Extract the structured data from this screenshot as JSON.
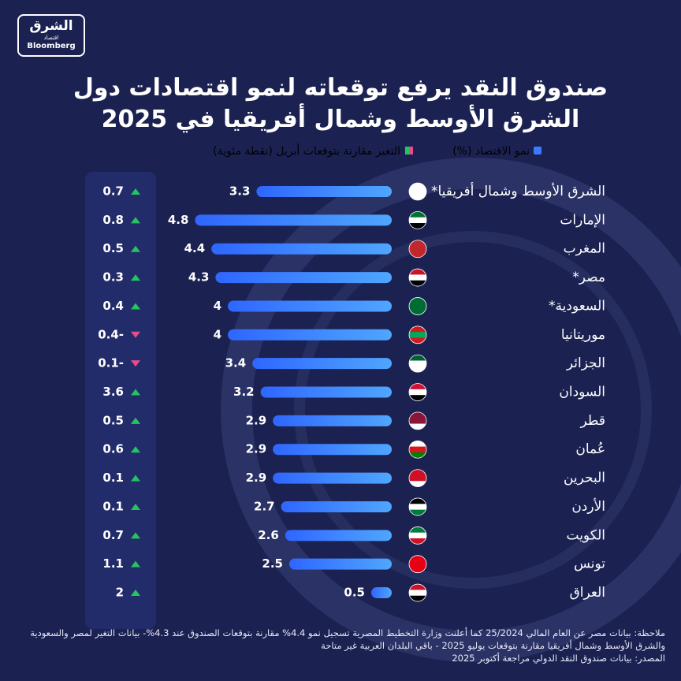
{
  "logo": {
    "name": "الشرق",
    "sub": "اقتصاد",
    "brand": "Bloomberg"
  },
  "chart_data": {
    "type": "bar",
    "orientation": "horizontal",
    "title": "صندوق النقد يرفع توقعاته لنمو اقتصادات دول الشرق الأوسط وشمال أفريقيا في 2025",
    "categories": [
      "الشرق الأوسط وشمال أفريقيا*",
      "الإمارات",
      "المغرب",
      "مصر*",
      "السعودية*",
      "موريتانيا",
      "الجزائر",
      "السودان",
      "قطر",
      "عُمان",
      "البحرين",
      "الأردن",
      "الكويت",
      "تونس",
      "العراق"
    ],
    "series": [
      {
        "name": "نمو الاقتصاد (%)",
        "color": "#3b7bff",
        "values": [
          3.3,
          4.8,
          4.4,
          4.3,
          4,
          4,
          3.4,
          3.2,
          2.9,
          2.9,
          2.9,
          2.7,
          2.6,
          2.5,
          0.5
        ]
      },
      {
        "name": "التغير مقارنة بتوقعات أبريل (نقطة مئوية)",
        "color": "#22c55e",
        "negative_color": "#e94b8a",
        "values": [
          0.7,
          0.8,
          0.5,
          0.3,
          0.4,
          -0.4,
          -0.1,
          3.6,
          0.5,
          0.6,
          0.1,
          0.1,
          0.7,
          1.1,
          2
        ],
        "value_labels": [
          "0.7",
          "0.8",
          "0.5",
          "0.3",
          "0.4",
          "0.4-",
          "0.1-",
          "3.6",
          "0.5",
          "0.6",
          "0.1",
          "0.1",
          "0.7",
          "1.1",
          "2"
        ]
      }
    ],
    "notes": [
      "ملاحظة: بيانات مصر عن العام المالي 25/2024 كما أعلنت وزارة التخطيط المصرية تسجيل نمو 4.4% مقارنة بتوقعات الصندوق عند 4.3%- بيانات التغير لمصر والسعودية والشرق الأوسط وشمال أفريقيا مقارنة بتوقعات يوليو 2025 - باقي البلدان العربية غير متاحة",
      "المصدر: بيانات صندوق النقد الدولي مراجعة أكتوبر 2025"
    ]
  }
}
